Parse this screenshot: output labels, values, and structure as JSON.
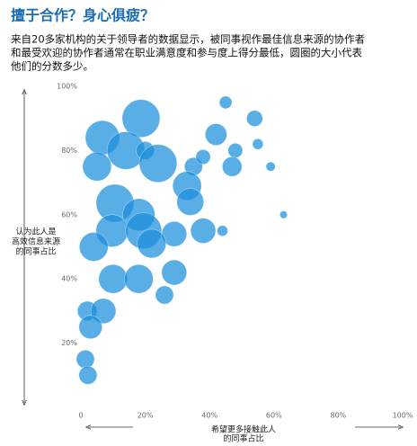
{
  "chart_data": {
    "type": "bubble",
    "title": "擅于合作？身心俱疲？",
    "subtitle": [
      "来自20多家机构的关于领导者的数据显示，被同事视作最佳信息来源的协作者",
      "和最受欢迎的协作者通常在职业满意度和参与度上得分最低，圆圈的大小代表",
      "他们的分数多少。"
    ],
    "y_label": [
      "认为此人是",
      "高效信息来源",
      "的同事占比"
    ],
    "x_label": [
      "希望更多接触此人",
      "的同事占比"
    ],
    "color": "#1a8fdc",
    "x": [
      45,
      18.7,
      54,
      42,
      6.7,
      14,
      20,
      55,
      48,
      24,
      5,
      35,
      38,
      47,
      59,
      33,
      10.6,
      34,
      18,
      63,
      9.7,
      19.5,
      29,
      38,
      44,
      4,
      22,
      10,
      18,
      29,
      26,
      2,
      7,
      3,
      1.4,
      2.2
    ],
    "y": [
      95,
      90,
      90,
      85,
      84,
      80,
      80,
      82,
      80,
      76,
      75,
      75,
      78,
      75,
      75,
      69,
      63.6,
      64,
      60,
      60,
      55,
      55,
      54,
      55,
      55,
      50,
      51,
      40,
      40,
      42,
      35,
      30,
      30,
      25,
      15,
      10
    ],
    "sizes": [
      11,
      100,
      18,
      33,
      82,
      100,
      23,
      8,
      15,
      100,
      58,
      23,
      15,
      27,
      6,
      58,
      100,
      51,
      73,
      4,
      73,
      91,
      44,
      44,
      8,
      58,
      58,
      58,
      58,
      44,
      23,
      27,
      44,
      38,
      23,
      23
    ],
    "xlim": [
      0,
      100
    ],
    "ylim": [
      0,
      100
    ],
    "xticks": [
      0,
      {
        "value": 20,
        "label": "20%"
      },
      {
        "value": 40,
        "label": "40%"
      },
      {
        "value": 60,
        "label": "60%"
      },
      {
        "value": 80,
        "label": "80%"
      },
      {
        "value": 100,
        "label": "100%"
      }
    ],
    "yticks": [
      {
        "value": 20,
        "label": "20%"
      },
      {
        "value": 40,
        "label": "40%"
      },
      {
        "value": 60,
        "label": "60%"
      },
      {
        "value": 80,
        "label": "80%"
      },
      {
        "value": 100,
        "label": "100%"
      }
    ]
  }
}
